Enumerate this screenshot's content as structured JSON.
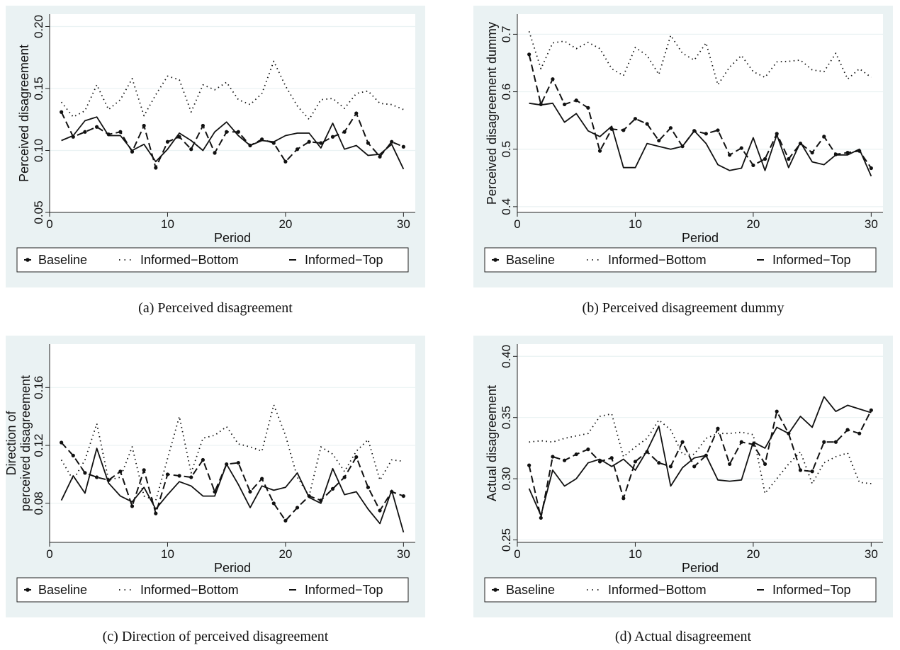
{
  "captions": {
    "a": "(a) Perceived disagreement",
    "b": "(b) Perceived disagreement dummy",
    "c": "(c) Direction of perceived disagreement",
    "d": "(d) Actual disagreement"
  },
  "legend": [
    "Baseline",
    "Informed−Bottom",
    "Informed−Top"
  ],
  "chart_data": [
    {
      "id": "a",
      "type": "line",
      "xlabel": "Period",
      "ylabel": [
        "Perceived disagreement"
      ],
      "xlim": [
        0,
        31
      ],
      "ylim": [
        0.05,
        0.21
      ],
      "xticks": [
        0,
        10,
        20,
        30
      ],
      "xtick_labels": [
        "0",
        "10",
        "20",
        "30"
      ],
      "yticks": [
        0.05,
        0.1,
        0.15,
        0.2
      ],
      "ytick_labels": [
        "0.05",
        "0.10",
        "0.15",
        "0.20"
      ],
      "grid": true,
      "legend_placement": "bottom",
      "x": [
        1,
        2,
        3,
        4,
        5,
        6,
        7,
        8,
        9,
        10,
        11,
        12,
        13,
        14,
        15,
        16,
        17,
        18,
        19,
        20,
        21,
        22,
        23,
        24,
        25,
        26,
        27,
        28,
        29,
        30
      ],
      "series": [
        {
          "name": "Baseline",
          "style": "dash-dot-markers",
          "values": [
            0.131,
            0.111,
            0.115,
            0.119,
            0.113,
            0.115,
            0.099,
            0.12,
            0.086,
            0.107,
            0.111,
            0.101,
            0.12,
            0.098,
            0.115,
            0.115,
            0.104,
            0.109,
            0.106,
            0.091,
            0.101,
            0.107,
            0.106,
            0.111,
            0.115,
            0.13,
            0.106,
            0.095,
            0.107,
            0.103
          ]
        },
        {
          "name": "Informed−Bottom",
          "style": "dotted",
          "values": [
            0.139,
            0.127,
            0.132,
            0.153,
            0.133,
            0.141,
            0.158,
            0.128,
            0.145,
            0.16,
            0.157,
            0.131,
            0.153,
            0.149,
            0.155,
            0.141,
            0.137,
            0.146,
            0.172,
            0.152,
            0.136,
            0.125,
            0.141,
            0.142,
            0.134,
            0.146,
            0.148,
            0.138,
            0.137,
            0.133
          ]
        },
        {
          "name": "Informed−Top",
          "style": "solid",
          "values": [
            0.108,
            0.112,
            0.124,
            0.127,
            0.112,
            0.112,
            0.1,
            0.105,
            0.091,
            0.101,
            0.114,
            0.108,
            0.1,
            0.115,
            0.123,
            0.112,
            0.104,
            0.108,
            0.107,
            0.112,
            0.114,
            0.114,
            0.102,
            0.122,
            0.101,
            0.104,
            0.096,
            0.097,
            0.105,
            0.085
          ]
        }
      ]
    },
    {
      "id": "b",
      "type": "line",
      "xlabel": "Period",
      "ylabel": [
        "Perceived disagreement dummy"
      ],
      "xlim": [
        0,
        31
      ],
      "ylim": [
        0.39,
        0.735
      ],
      "xticks": [
        0,
        10,
        20,
        30
      ],
      "xtick_labels": [
        "0",
        "10",
        "20",
        "30"
      ],
      "yticks": [
        0.4,
        0.5,
        0.6,
        0.7
      ],
      "ytick_labels": [
        "0.4",
        "0.5",
        "0.6",
        "0.7"
      ],
      "grid": true,
      "legend_placement": "bottom",
      "x": [
        1,
        2,
        3,
        4,
        5,
        6,
        7,
        8,
        9,
        10,
        11,
        12,
        13,
        14,
        15,
        16,
        17,
        18,
        19,
        20,
        21,
        22,
        23,
        24,
        25,
        26,
        27,
        28,
        29,
        30
      ],
      "series": [
        {
          "name": "Baseline",
          "style": "dash-dot-markers",
          "values": [
            0.665,
            0.578,
            0.622,
            0.578,
            0.585,
            0.572,
            0.497,
            0.535,
            0.533,
            0.553,
            0.544,
            0.515,
            0.537,
            0.505,
            0.532,
            0.527,
            0.533,
            0.49,
            0.502,
            0.472,
            0.483,
            0.527,
            0.483,
            0.51,
            0.494,
            0.522,
            0.491,
            0.494,
            0.497,
            0.467
          ]
        },
        {
          "name": "Informed−Bottom",
          "style": "dotted",
          "values": [
            0.705,
            0.64,
            0.685,
            0.688,
            0.675,
            0.686,
            0.675,
            0.64,
            0.628,
            0.677,
            0.663,
            0.63,
            0.698,
            0.667,
            0.655,
            0.685,
            0.612,
            0.643,
            0.663,
            0.635,
            0.625,
            0.652,
            0.653,
            0.655,
            0.638,
            0.635,
            0.667,
            0.622,
            0.64,
            0.625
          ]
        },
        {
          "name": "Informed−Top",
          "style": "solid",
          "values": [
            0.58,
            0.577,
            0.58,
            0.547,
            0.562,
            0.532,
            0.522,
            0.54,
            0.468,
            0.468,
            0.51,
            0.505,
            0.5,
            0.505,
            0.532,
            0.51,
            0.473,
            0.463,
            0.467,
            0.52,
            0.463,
            0.525,
            0.468,
            0.512,
            0.478,
            0.473,
            0.49,
            0.49,
            0.5,
            0.453
          ]
        }
      ]
    },
    {
      "id": "c",
      "type": "line",
      "xlabel": "Period",
      "ylabel": [
        "Direction of",
        "perceived disagreement"
      ],
      "xlim": [
        0,
        31
      ],
      "ylim": [
        0.053,
        0.19
      ],
      "xticks": [
        0,
        10,
        20,
        30
      ],
      "xtick_labels": [
        "0",
        "10",
        "20",
        "30"
      ],
      "yticks": [
        0.08,
        0.12,
        0.16
      ],
      "ytick_labels": [
        "0.08",
        "0.12",
        "0.16"
      ],
      "grid": true,
      "legend_placement": "bottom",
      "x": [
        1,
        2,
        3,
        4,
        5,
        6,
        7,
        8,
        9,
        10,
        11,
        12,
        13,
        14,
        15,
        16,
        17,
        18,
        19,
        20,
        21,
        22,
        23,
        24,
        25,
        26,
        27,
        28,
        29,
        30
      ],
      "series": [
        {
          "name": "Baseline",
          "style": "dash-dot-markers",
          "values": [
            0.122,
            0.113,
            0.101,
            0.098,
            0.096,
            0.102,
            0.078,
            0.103,
            0.073,
            0.1,
            0.099,
            0.098,
            0.11,
            0.088,
            0.107,
            0.108,
            0.088,
            0.097,
            0.08,
            0.068,
            0.077,
            0.085,
            0.082,
            0.09,
            0.098,
            0.112,
            0.091,
            0.075,
            0.088,
            0.085
          ]
        },
        {
          "name": "Informed−Bottom",
          "style": "dotted",
          "values": [
            0.11,
            0.096,
            0.11,
            0.135,
            0.096,
            0.098,
            0.119,
            0.085,
            0.082,
            0.111,
            0.14,
            0.101,
            0.125,
            0.127,
            0.133,
            0.121,
            0.119,
            0.116,
            0.148,
            0.127,
            0.098,
            0.085,
            0.119,
            0.114,
            0.102,
            0.116,
            0.124,
            0.096,
            0.11,
            0.109
          ]
        },
        {
          "name": "Informed−Top",
          "style": "solid",
          "values": [
            0.082,
            0.099,
            0.087,
            0.118,
            0.094,
            0.085,
            0.081,
            0.091,
            0.076,
            0.086,
            0.095,
            0.092,
            0.085,
            0.085,
            0.107,
            0.093,
            0.077,
            0.092,
            0.089,
            0.091,
            0.101,
            0.084,
            0.08,
            0.104,
            0.086,
            0.088,
            0.076,
            0.066,
            0.089,
            0.06
          ]
        }
      ]
    },
    {
      "id": "d",
      "type": "line",
      "xlabel": "Period",
      "ylabel": [
        "Actual disagreement"
      ],
      "xlim": [
        0,
        31
      ],
      "ylim": [
        0.248,
        0.41
      ],
      "xticks": [
        0,
        10,
        20,
        30
      ],
      "xtick_labels": [
        "0",
        "10",
        "20",
        "30"
      ],
      "yticks": [
        0.25,
        0.3,
        0.35,
        0.4
      ],
      "ytick_labels": [
        "0.25",
        "0.30",
        "0.35",
        "0.40"
      ],
      "grid": true,
      "legend_placement": "bottom",
      "x": [
        1,
        2,
        3,
        4,
        5,
        6,
        7,
        8,
        9,
        10,
        11,
        12,
        13,
        14,
        15,
        16,
        17,
        18,
        19,
        20,
        21,
        22,
        23,
        24,
        25,
        26,
        27,
        28,
        29,
        30
      ],
      "series": [
        {
          "name": "Baseline",
          "style": "dash-dot-markers",
          "values": [
            0.311,
            0.268,
            0.318,
            0.315,
            0.32,
            0.324,
            0.314,
            0.317,
            0.284,
            0.314,
            0.322,
            0.313,
            0.31,
            0.33,
            0.31,
            0.319,
            0.341,
            0.312,
            0.33,
            0.328,
            0.312,
            0.355,
            0.337,
            0.307,
            0.306,
            0.33,
            0.33,
            0.34,
            0.337,
            0.356
          ]
        },
        {
          "name": "Informed−Bottom",
          "style": "dotted",
          "values": [
            0.33,
            0.331,
            0.33,
            0.333,
            0.335,
            0.337,
            0.351,
            0.353,
            0.318,
            0.326,
            0.333,
            0.348,
            0.34,
            0.32,
            0.32,
            0.333,
            0.337,
            0.337,
            0.338,
            0.336,
            0.288,
            0.3,
            0.312,
            0.322,
            0.296,
            0.313,
            0.318,
            0.321,
            0.297,
            0.296
          ]
        },
        {
          "name": "Informed−Top",
          "style": "solid",
          "values": [
            0.292,
            0.27,
            0.307,
            0.294,
            0.3,
            0.313,
            0.316,
            0.31,
            0.316,
            0.307,
            0.323,
            0.343,
            0.294,
            0.309,
            0.317,
            0.319,
            0.299,
            0.298,
            0.299,
            0.33,
            0.325,
            0.342,
            0.337,
            0.351,
            0.342,
            0.367,
            0.355,
            0.36,
            0.357,
            0.354
          ]
        }
      ]
    }
  ]
}
